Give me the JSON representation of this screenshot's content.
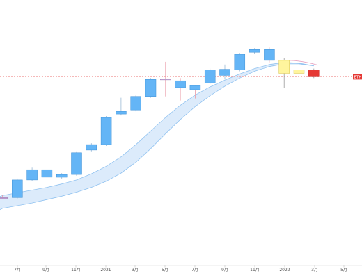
{
  "chart_data": {
    "type": "candlestick",
    "x_tick_labels": [
      "7月",
      "9月",
      "11月",
      "2021",
      "3月",
      "5月",
      "7月",
      "9月",
      "11月",
      "2022",
      "3月",
      "5月"
    ],
    "price_tag": "ETH",
    "colors": {
      "up_fill": "#64b5f6",
      "up_stroke": "#3d8fd6",
      "down_fill": "#64b5f6",
      "neutral_fill": "#fff59d",
      "neutral_stroke": "#d8c24a",
      "last_fill": "#e53935",
      "band_fill": "#dcebfb",
      "band_stroke": "#90c2f0",
      "price_line": "#f2a0a0",
      "tag_bg": "#e53935",
      "wick_up": "#9ab9d6",
      "wick_down": "#e89aa6"
    },
    "candles": [
      {
        "open": 0.0,
        "close": 0.0,
        "high": 0.4,
        "low": -0.2,
        "style": "flat"
      },
      {
        "open": 0.0,
        "close": 2.6,
        "high": 2.8,
        "low": -0.2,
        "style": "up"
      },
      {
        "open": 2.6,
        "close": 4.1,
        "high": 4.4,
        "low": 2.4,
        "style": "up"
      },
      {
        "open": 4.1,
        "close": 3.0,
        "high": 4.8,
        "low": 2.0,
        "style": "down"
      },
      {
        "open": 3.0,
        "close": 3.4,
        "high": 3.6,
        "low": 2.7,
        "style": "up"
      },
      {
        "open": 3.4,
        "close": 6.6,
        "high": 6.8,
        "low": 3.2,
        "style": "up"
      },
      {
        "open": 7.0,
        "close": 7.8,
        "high": 8.0,
        "low": 6.8,
        "style": "up"
      },
      {
        "open": 7.8,
        "close": 11.8,
        "high": 12.0,
        "low": 7.6,
        "style": "up"
      },
      {
        "open": 12.3,
        "close": 12.7,
        "high": 14.7,
        "low": 12.1,
        "style": "up"
      },
      {
        "open": 12.9,
        "close": 14.9,
        "high": 15.1,
        "low": 12.7,
        "style": "up"
      },
      {
        "open": 14.9,
        "close": 17.4,
        "high": 17.6,
        "low": 14.7,
        "style": "up"
      },
      {
        "open": 17.4,
        "close": 17.5,
        "high": 20.0,
        "low": 14.9,
        "style": "flat"
      },
      {
        "open": 17.2,
        "close": 16.2,
        "high": 17.6,
        "low": 14.3,
        "style": "down"
      },
      {
        "open": 16.5,
        "close": 15.9,
        "high": 16.5,
        "low": 14.6,
        "style": "down"
      },
      {
        "open": 16.9,
        "close": 18.8,
        "high": 19.0,
        "low": 16.7,
        "style": "up"
      },
      {
        "open": 18.0,
        "close": 18.9,
        "high": 19.6,
        "low": 17.4,
        "style": "up"
      },
      {
        "open": 18.8,
        "close": 21.1,
        "high": 21.3,
        "low": 18.6,
        "style": "up"
      },
      {
        "open": 21.4,
        "close": 21.8,
        "high": 22.0,
        "low": 21.2,
        "style": "up"
      },
      {
        "open": 21.8,
        "close": 20.2,
        "high": 22.1,
        "low": 19.9,
        "style": "down"
      },
      {
        "open": 20.2,
        "close": 18.3,
        "high": 20.5,
        "low": 16.2,
        "style": "neutral"
      },
      {
        "open": 18.3,
        "close": 18.8,
        "high": 19.3,
        "low": 16.9,
        "style": "neutral"
      },
      {
        "open": 18.8,
        "close": 17.8,
        "high": 19.0,
        "low": 17.6,
        "style": "last"
      }
    ],
    "band_upper": [
      0.3,
      0.7,
      1.1,
      1.5,
      2.0,
      2.6,
      3.5,
      4.6,
      6.0,
      7.8,
      9.8,
      11.8,
      13.6,
      15.1,
      16.3,
      17.3,
      18.2,
      19.0,
      19.6,
      19.9,
      19.8,
      19.4
    ],
    "band_lower": [
      -1.6,
      -1.2,
      -0.8,
      -0.3,
      0.2,
      0.8,
      1.5,
      2.4,
      3.6,
      5.2,
      7.2,
      9.4,
      11.5,
      13.4,
      15.0,
      16.4,
      17.6,
      18.6,
      19.3,
      19.7,
      19.7,
      19.4
    ],
    "last_price": 17.8,
    "ylim": [
      -10,
      25
    ],
    "grid": false
  }
}
